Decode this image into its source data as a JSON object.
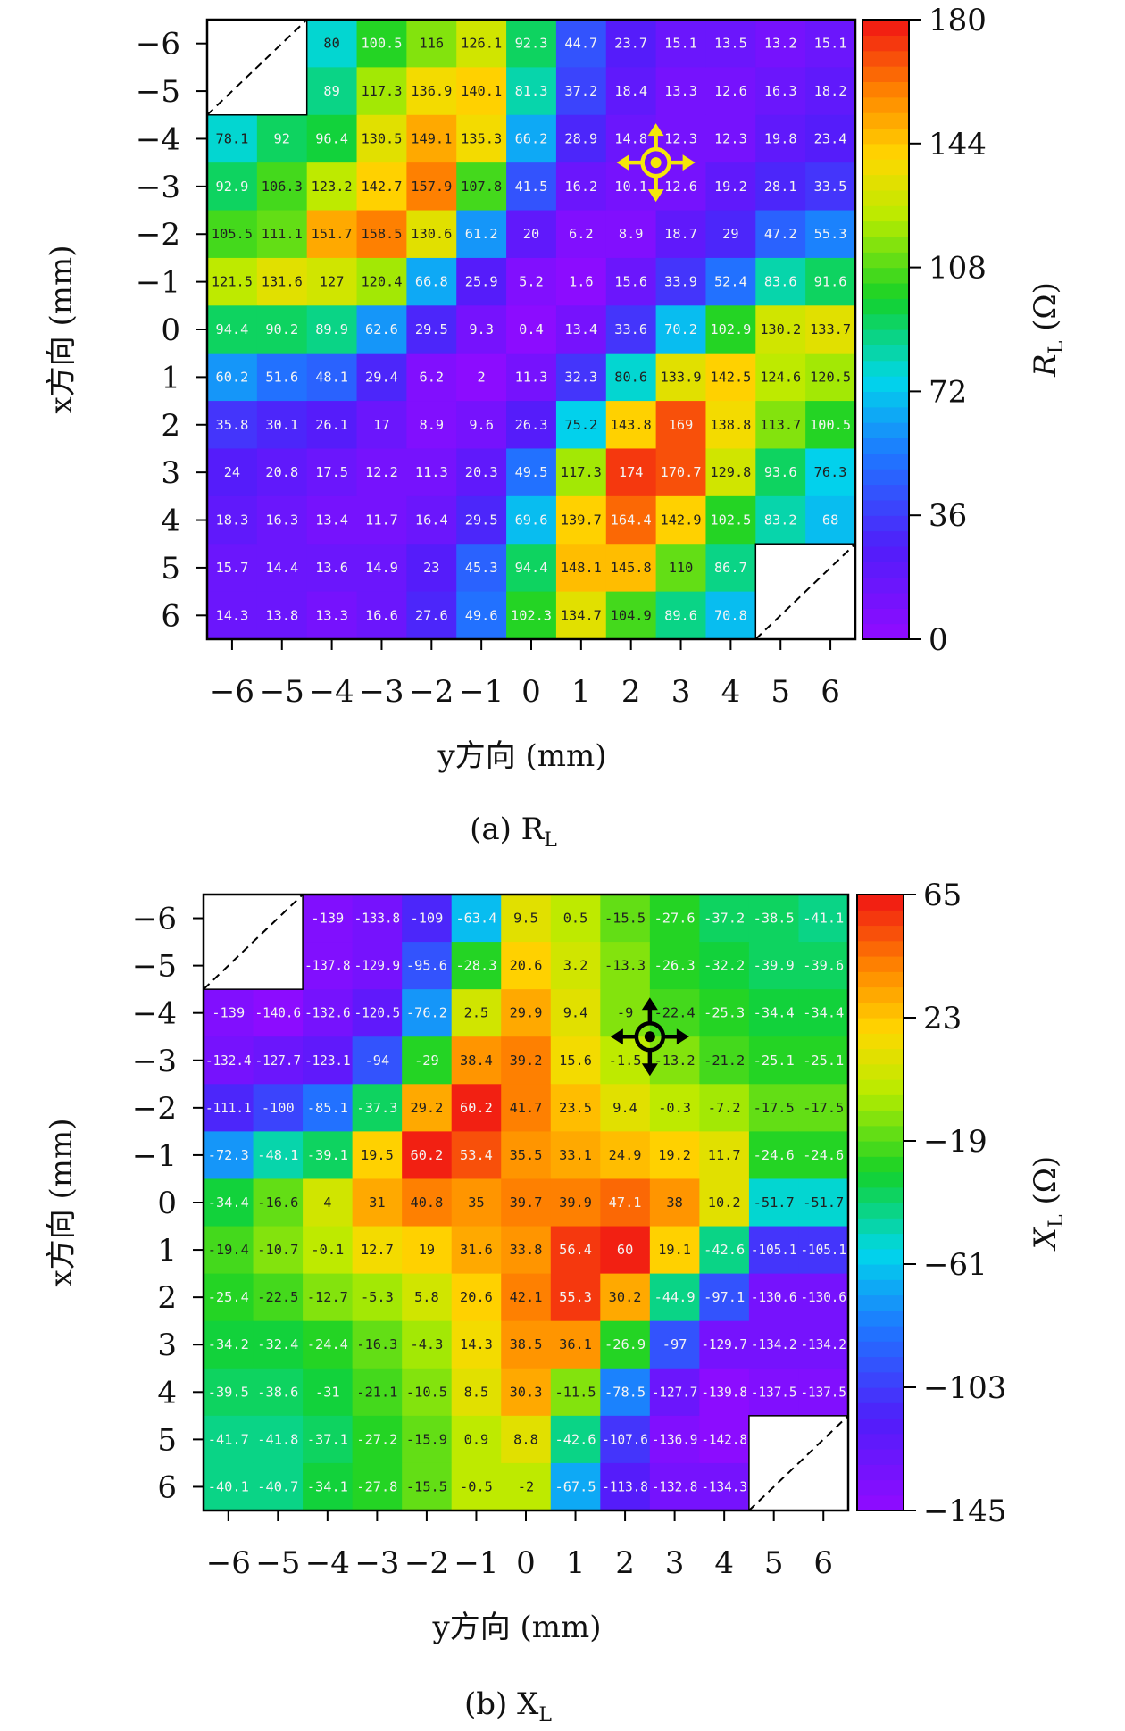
{
  "chart_data": [
    {
      "type": "heatmap",
      "panel_id": "a",
      "caption": "(a) R",
      "caption_sub": "L",
      "xlabel": "y方向 (mm)",
      "ylabel": "x方向 (mm)",
      "colorbar_label": "R",
      "colorbar_label_sub": "L",
      "colorbar_unit": " (Ω)",
      "x_ticks": [
        "−6",
        "−5",
        "−4",
        "−3",
        "−2",
        "−1",
        "0",
        "1",
        "2",
        "3",
        "4",
        "5",
        "6"
      ],
      "y_ticks": [
        "−6",
        "−5",
        "−4",
        "−3",
        "−2",
        "−1",
        "0",
        "1",
        "2",
        "3",
        "4",
        "5",
        "6"
      ],
      "colorbar_ticks": [
        "180",
        "144",
        "108",
        "72",
        "36",
        "0"
      ],
      "vmin": 0,
      "vmax": 180,
      "marker_color": "#f5e60a",
      "marker_y": 2.5,
      "marker_x": -3.5,
      "rows": [
        [
          null,
          null,
          80,
          100.5,
          116,
          126.1,
          92.3,
          44.7,
          23.7,
          15.1,
          13.5,
          13.2,
          15.1
        ],
        [
          null,
          null,
          89,
          117.3,
          136.9,
          140.1,
          81.3,
          37.2,
          18.4,
          13.3,
          12.6,
          16.3,
          18.2
        ],
        [
          78.1,
          92,
          96.4,
          130.5,
          149.1,
          135.3,
          66.2,
          28.9,
          14.8,
          12.3,
          12.3,
          19.8,
          23.4
        ],
        [
          92.9,
          106.3,
          123.2,
          142.7,
          157.9,
          107.8,
          41.5,
          16.2,
          10.1,
          12.6,
          19.2,
          28.1,
          33.5
        ],
        [
          105.5,
          111.1,
          151.7,
          158.5,
          130.6,
          61.2,
          20,
          6.2,
          8.9,
          18.7,
          29,
          47.2,
          55.3
        ],
        [
          121.5,
          131.6,
          127,
          120.4,
          66.8,
          25.9,
          5.2,
          1.6,
          15.6,
          33.9,
          52.4,
          83.6,
          91.6
        ],
        [
          94.4,
          90.2,
          89.9,
          62.6,
          29.5,
          9.3,
          0.4,
          13.4,
          33.6,
          70.2,
          102.9,
          130.2,
          133.7
        ],
        [
          60.2,
          51.6,
          48.1,
          29.4,
          6.2,
          2,
          11.3,
          32.3,
          80.6,
          133.9,
          142.5,
          124.6,
          120.5
        ],
        [
          35.8,
          30.1,
          26.1,
          17,
          8.9,
          9.6,
          26.3,
          75.2,
          143.8,
          169,
          138.8,
          113.7,
          100.5
        ],
        [
          24,
          20.8,
          17.5,
          12.2,
          11.3,
          20.3,
          49.5,
          117.3,
          174,
          170.7,
          129.8,
          93.6,
          76.3
        ],
        [
          18.3,
          16.3,
          13.4,
          11.7,
          16.4,
          29.5,
          69.6,
          139.7,
          164.4,
          142.9,
          102.5,
          83.2,
          68
        ],
        [
          15.7,
          14.4,
          13.6,
          14.9,
          23,
          45.3,
          94.4,
          148.1,
          145.8,
          110,
          86.7,
          null,
          null
        ],
        [
          14.3,
          13.8,
          13.3,
          16.6,
          27.6,
          49.6,
          102.3,
          134.7,
          104.9,
          89.6,
          70.8,
          null,
          null
        ]
      ]
    },
    {
      "type": "heatmap",
      "panel_id": "b",
      "caption": "(b) X",
      "caption_sub": "L",
      "xlabel": "y方向 (mm)",
      "ylabel": "x方向 (mm)",
      "colorbar_label": "X",
      "colorbar_label_sub": "L",
      "colorbar_unit": " (Ω)",
      "x_ticks": [
        "−6",
        "−5",
        "−4",
        "−3",
        "−2",
        "−1",
        "0",
        "1",
        "2",
        "3",
        "4",
        "5",
        "6"
      ],
      "y_ticks": [
        "−6",
        "−5",
        "−4",
        "−3",
        "−2",
        "−1",
        "0",
        "1",
        "2",
        "3",
        "4",
        "5",
        "6"
      ],
      "colorbar_ticks": [
        "65",
        "23",
        "−19",
        "−61",
        "−103",
        "−145"
      ],
      "vmin": -145,
      "vmax": 65,
      "marker_color": "#000000",
      "marker_y": 2.5,
      "marker_x": -3.5,
      "rows": [
        [
          null,
          null,
          -139,
          -133.8,
          -109,
          -63.4,
          9.5,
          0.5,
          -15.5,
          -27.6,
          -37.2,
          -38.5,
          -41.1
        ],
        [
          null,
          null,
          -137.8,
          -129.9,
          -95.6,
          -28.3,
          20.6,
          3.2,
          -13.3,
          -26.3,
          -32.2,
          -39.9,
          -39.6
        ],
        [
          -139,
          -140.6,
          -132.6,
          -120.5,
          -76.2,
          2.5,
          29.9,
          9.4,
          -9,
          -22.4,
          -25.3,
          -34.4,
          -34.4
        ],
        [
          -132.4,
          -127.7,
          -123.1,
          -94,
          -29,
          38.4,
          39.2,
          15.6,
          -1.5,
          -13.2,
          -21.2,
          -25.1,
          -25.1
        ],
        [
          -111.1,
          -100,
          -85.1,
          -37.3,
          29.2,
          60.2,
          41.7,
          23.5,
          9.4,
          -0.3,
          -7.2,
          -17.5,
          -17.5
        ],
        [
          -72.3,
          -48.1,
          -39.1,
          19.5,
          60.2,
          53.4,
          35.5,
          33.1,
          24.9,
          19.2,
          11.7,
          -24.6,
          -24.6
        ],
        [
          -34.4,
          -16.6,
          4,
          31,
          40.8,
          35,
          39.7,
          39.9,
          47.1,
          38,
          10.2,
          -51.7,
          -51.7
        ],
        [
          -19.4,
          -10.7,
          -0.1,
          12.7,
          19,
          31.6,
          33.8,
          56.4,
          60,
          19.1,
          -42.6,
          -105.1,
          -105.1
        ],
        [
          -25.4,
          -22.5,
          -12.7,
          -5.3,
          5.8,
          20.6,
          42.1,
          55.3,
          30.2,
          -44.9,
          -97.1,
          -130.6,
          -130.6
        ],
        [
          -34.2,
          -32.4,
          -24.4,
          -16.3,
          -4.3,
          14.3,
          38.5,
          36.1,
          -26.9,
          -97,
          -129.7,
          -134.2,
          -134.2
        ],
        [
          -39.5,
          -38.6,
          -31,
          -21.1,
          -10.5,
          8.5,
          30.3,
          -11.5,
          -78.5,
          -127.7,
          -139.8,
          -137.5,
          -137.5
        ],
        [
          -41.7,
          -41.8,
          -37.1,
          -27.2,
          -15.9,
          0.9,
          8.8,
          -42.6,
          -107.6,
          -136.9,
          -142.8,
          null,
          null
        ],
        [
          -40.1,
          -40.7,
          -34.1,
          -27.8,
          -15.5,
          -0.5,
          -2,
          -67.5,
          -113.8,
          -132.8,
          -134.3,
          null,
          null
        ]
      ]
    }
  ]
}
